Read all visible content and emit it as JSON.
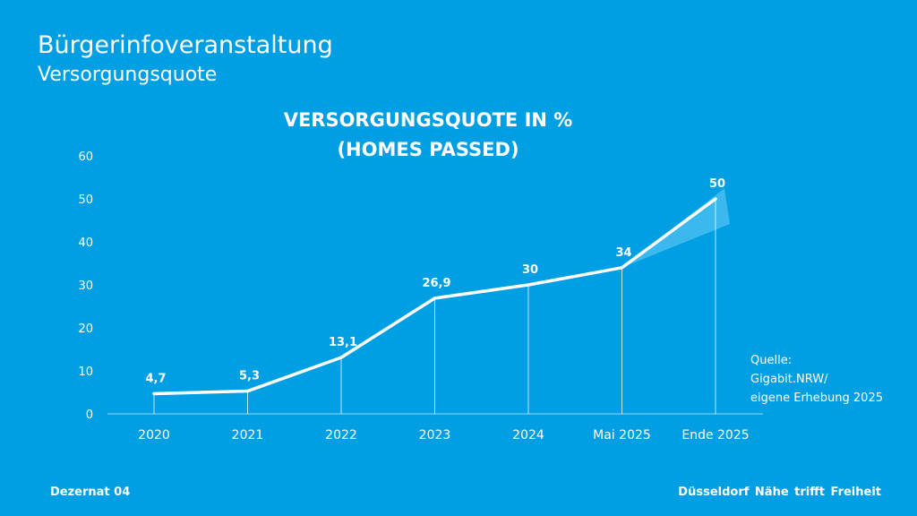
{
  "slide": {
    "title": "Bürgerinfoveranstaltung",
    "subtitle": "Versorgungsquote"
  },
  "chart_data": {
    "type": "line",
    "title_lines": [
      "VERSORGUNGSQUOTE IN %",
      "(HOMES PASSED)"
    ],
    "categories": [
      "2020",
      "2021",
      "2022",
      "2023",
      "2024",
      "Mai 2025",
      "Ende 2025"
    ],
    "values": [
      4.7,
      5.3,
      13.1,
      26.9,
      30,
      34,
      50
    ],
    "data_labels": [
      "4,7",
      "5,3",
      "13,1",
      "26,9",
      "30",
      "34",
      "50"
    ],
    "y_ticks": [
      0,
      10,
      20,
      30,
      40,
      50,
      60
    ],
    "ylim": [
      0,
      60
    ],
    "grid": false,
    "drop_lines": true,
    "projection_highlight": "last segment",
    "colors": {
      "line": "#ffffff",
      "background": "#009fe3",
      "highlight": "#5bc6f2"
    }
  },
  "source": {
    "label": "Quelle:",
    "lines": [
      "Gigabit.NRW/",
      "eigene Erhebung 2025"
    ]
  },
  "footer": {
    "left": "Dezernat 04",
    "right": "Düsseldorf  Nähe trifft Freiheit"
  }
}
